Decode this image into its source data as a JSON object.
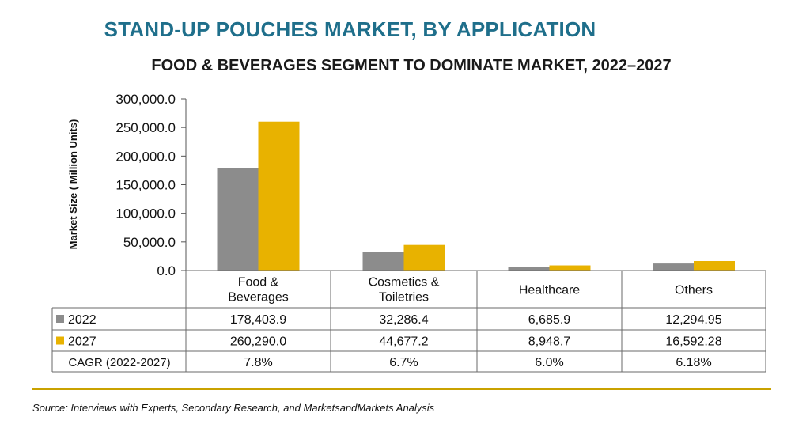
{
  "header": {
    "title": "STAND-UP POUCHES MARKET, BY APPLICATION",
    "subtitle": "FOOD & BEVERAGES SEGMENT TO DOMINATE MARKET, 2022–2027"
  },
  "source": "Source: Interviews with Experts, Secondary Research, and MarketsandMarkets Analysis",
  "colors": {
    "series_2022": "#8c8c8c",
    "series_2027": "#e8b200",
    "title": "#1f6f8b",
    "rule": "#c9a200"
  },
  "chart_data": {
    "type": "bar",
    "ylabel": "Market Size ( Million Units)",
    "ylim": [
      0,
      300000
    ],
    "yticks": [
      "0.0",
      "50,000.0",
      "100,000.0",
      "150,000.0",
      "200,000.0",
      "250,000.0",
      "300,000.0"
    ],
    "categories": [
      [
        "Food &",
        "Beverages"
      ],
      [
        "Cosmetics &",
        "Toiletries"
      ],
      [
        "Healthcare"
      ],
      [
        "Others"
      ]
    ],
    "series": [
      {
        "name": "2022",
        "values": [
          178403.9,
          32286.4,
          6685.9,
          12294.95
        ],
        "labels": [
          "178,403.9",
          "32,286.4",
          "6,685.9",
          "12,294.95"
        ]
      },
      {
        "name": "2027",
        "values": [
          260290.0,
          44677.2,
          8948.7,
          16592.28
        ],
        "labels": [
          "260,290.0",
          "44,677.2",
          "8,948.7",
          "16,592.28"
        ]
      }
    ],
    "cagr": {
      "label": "CAGR (2022-2027)",
      "values": [
        "7.8%",
        "6.7%",
        "6.0%",
        "6.18%"
      ]
    }
  }
}
